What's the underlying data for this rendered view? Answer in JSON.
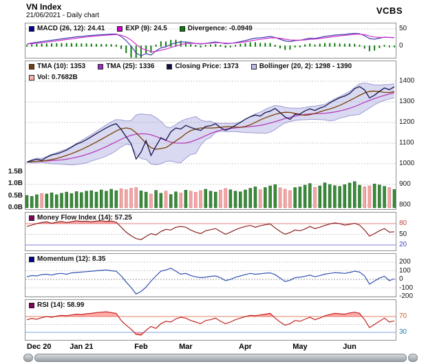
{
  "header": {
    "title": "VN Index",
    "subtitle": "21/06/2021 - Daily chart",
    "brand": "VCBS"
  },
  "legends": {
    "macd": [
      {
        "label": "MACD (26, 12): 24.41",
        "color": "#000090"
      },
      {
        "label": "EXP (9): 24.5",
        "color": "#cc00cc"
      },
      {
        "label": "Divergence: -0.0949",
        "color": "#0a7a0a"
      }
    ],
    "main_row1": [
      {
        "label": "TMA (10): 1353",
        "color": "#7b3f00"
      },
      {
        "label": "TMA (25): 1336",
        "color": "#9a30c0"
      },
      {
        "label": "Closing Price: 1373",
        "color": "#101048"
      },
      {
        "label": "Bollinger (20, 2): 1298 - 1390",
        "color": "#bcbcec"
      }
    ],
    "main_row2": [
      {
        "label": "Vol: 0.7682B",
        "color": "#ffb0a8"
      }
    ],
    "mfi": [
      {
        "label": "Money Flow Index (14): 57.25",
        "color": "#800060"
      }
    ],
    "momentum": [
      {
        "label": "Momentum (12): 8.35",
        "color": "#000090"
      }
    ],
    "rsi": [
      {
        "label": "RSI (14): 58.99",
        "color": "#800060"
      }
    ]
  },
  "axes": {
    "macd_right": [
      {
        "label": "50",
        "value": 50
      },
      {
        "label": "0",
        "value": 0
      }
    ],
    "main_right": [
      {
        "label": "1400",
        "value": 1400
      },
      {
        "label": "1300",
        "value": 1300
      },
      {
        "label": "1200",
        "value": 1200
      },
      {
        "label": "1100",
        "value": 1100
      },
      {
        "label": "1000",
        "value": 1000
      },
      {
        "label": "900",
        "value": 900
      },
      {
        "label": "800",
        "value": 800
      }
    ],
    "volume_left": [
      {
        "label": "1.5B",
        "value": 1.5
      },
      {
        "label": "1.0B",
        "value": 1.0
      },
      {
        "label": "0.5B",
        "value": 0.5
      },
      {
        "label": "0.0B",
        "value": 0.0
      }
    ],
    "mfi_right": [
      {
        "label": "80",
        "value": 80,
        "color": "#c04040"
      },
      {
        "label": "50",
        "value": 50
      },
      {
        "label": "20",
        "value": 20,
        "color": "#4040c0"
      }
    ],
    "momentum_right": [
      {
        "label": "200",
        "value": 200
      },
      {
        "label": "100",
        "value": 100
      },
      {
        "label": "0",
        "value": 0
      },
      {
        "label": "-100",
        "value": -100
      },
      {
        "label": "-200",
        "value": -200
      }
    ],
    "rsi_right": [
      {
        "label": "70",
        "value": 70,
        "color": "#cc5520"
      },
      {
        "label": "30",
        "value": 30,
        "color": "#2080a0"
      }
    ]
  },
  "chart_data": {
    "type": "line",
    "title": "VN Index - Daily chart (21/06/2021)",
    "x_tick_labels": [
      "Dec 20",
      "Jan 21",
      "Feb",
      "Mar",
      "Apr",
      "May",
      "Jun"
    ],
    "x_tick_index": [
      0,
      11,
      23,
      32,
      44,
      55,
      65
    ],
    "price_ylim": [
      800,
      1400
    ],
    "volume_ylim_billions": [
      0,
      1.5
    ],
    "close": [
      1008,
      1016,
      1022,
      1017,
      1032,
      1043,
      1048,
      1056,
      1066,
      1080,
      1095,
      1104,
      1117,
      1131,
      1146,
      1160,
      1174,
      1186,
      1194,
      1166,
      1131,
      1097,
      1023,
      1057,
      1112,
      1040,
      1085,
      1126,
      1114,
      1155,
      1173,
      1168,
      1186,
      1176,
      1168,
      1161,
      1181,
      1184,
      1194,
      1175,
      1162,
      1172,
      1186,
      1200,
      1216,
      1228,
      1236,
      1231,
      1248,
      1255,
      1268,
      1248,
      1227,
      1215,
      1239,
      1241,
      1256,
      1266,
      1258,
      1270,
      1278,
      1295,
      1308,
      1320,
      1328,
      1340,
      1364,
      1374,
      1358,
      1319,
      1332,
      1351,
      1367,
      1359,
      1373
    ],
    "volume_billions": [
      0.52,
      0.48,
      0.55,
      0.6,
      0.58,
      0.63,
      0.55,
      0.61,
      0.66,
      0.6,
      0.68,
      0.64,
      0.7,
      0.72,
      0.66,
      0.75,
      0.7,
      0.78,
      0.72,
      0.8,
      0.76,
      0.82,
      0.85,
      0.71,
      0.66,
      0.58,
      0.73,
      0.61,
      0.7,
      0.56,
      0.67,
      0.62,
      0.74,
      0.7,
      0.65,
      0.72,
      0.78,
      0.7,
      0.66,
      0.74,
      0.81,
      0.76,
      0.7,
      0.67,
      0.75,
      0.82,
      0.88,
      0.76,
      0.85,
      0.92,
      0.97,
      0.84,
      0.78,
      0.72,
      0.85,
      0.88,
      0.95,
      1.02,
      0.86,
      0.92,
      1.05,
      0.98,
      0.93,
      0.9,
      0.97,
      1.04,
      1.1,
      0.95,
      0.88,
      0.92,
      1.0,
      0.96,
      0.9,
      0.85,
      0.7682
    ],
    "macd": [
      6,
      9,
      11,
      13,
      15,
      17,
      19,
      21,
      23,
      25,
      27,
      28,
      30,
      31,
      32,
      33,
      34,
      35,
      35,
      28,
      16,
      0,
      -20,
      -28,
      -22,
      -26,
      -14,
      -5,
      -2,
      5,
      10,
      12,
      12,
      10,
      8,
      6,
      8,
      10,
      12,
      10,
      7,
      8,
      10,
      13,
      16,
      20,
      23,
      24,
      26,
      28,
      25,
      20,
      15,
      13,
      16,
      17,
      20,
      23,
      22,
      25,
      28,
      30,
      32,
      33,
      34,
      36,
      37,
      36,
      30,
      22,
      20,
      23,
      26,
      25,
      24.41
    ],
    "mfi": [
      72,
      76,
      80,
      83,
      85,
      81,
      84,
      86,
      83,
      85,
      88,
      86,
      87,
      85,
      87,
      88,
      86,
      87,
      84,
      70,
      56,
      46,
      38,
      35,
      44,
      52,
      48,
      58,
      64,
      62,
      70,
      72,
      70,
      62,
      56,
      52,
      60,
      63,
      66,
      58,
      50,
      56,
      63,
      68,
      72,
      75,
      70,
      74,
      77,
      79,
      68,
      58,
      50,
      55,
      62,
      60,
      65,
      72,
      66,
      70,
      75,
      79,
      82,
      80,
      76,
      78,
      81,
      76,
      62,
      45,
      52,
      60,
      66,
      56,
      57.25
    ],
    "momentum": [
      30,
      45,
      40,
      55,
      60,
      50,
      65,
      70,
      60,
      75,
      80,
      85,
      90,
      95,
      100,
      105,
      110,
      100,
      95,
      40,
      -30,
      -95,
      -170,
      -140,
      -90,
      -20,
      40,
      95,
      110,
      130,
      95,
      60,
      70,
      45,
      30,
      20,
      25,
      35,
      40,
      20,
      -15,
      0,
      25,
      40,
      55,
      70,
      60,
      65,
      72,
      75,
      55,
      15,
      -25,
      -10,
      20,
      25,
      35,
      50,
      30,
      45,
      60,
      70,
      78,
      75,
      70,
      80,
      95,
      85,
      40,
      -55,
      -20,
      15,
      35,
      -15,
      8.35
    ],
    "rsi": [
      62,
      65,
      63,
      67,
      70,
      68,
      71,
      73,
      72,
      74,
      76,
      75,
      77,
      78,
      80,
      81,
      82,
      80,
      78,
      60,
      48,
      38,
      25,
      23,
      35,
      45,
      40,
      52,
      58,
      56,
      64,
      68,
      66,
      60,
      56,
      52,
      60,
      62,
      66,
      58,
      52,
      56,
      62,
      66,
      70,
      73,
      72,
      74,
      76,
      78,
      66,
      56,
      48,
      52,
      60,
      58,
      63,
      68,
      62,
      66,
      72,
      75,
      78,
      77,
      76,
      79,
      81,
      78,
      62,
      42,
      50,
      58,
      66,
      56,
      58.99
    ],
    "indicators": {
      "macd_last": 24.41,
      "exp_last": 24.5,
      "divergence_last": -0.0949,
      "tma10_last": 1353,
      "tma25_last": 1336,
      "close_last": 1373,
      "bollinger_last": "1298 - 1390",
      "volume_last": "0.7682B",
      "mfi_last": 57.25,
      "momentum_last": 8.35,
      "rsi_last": 58.99
    }
  }
}
